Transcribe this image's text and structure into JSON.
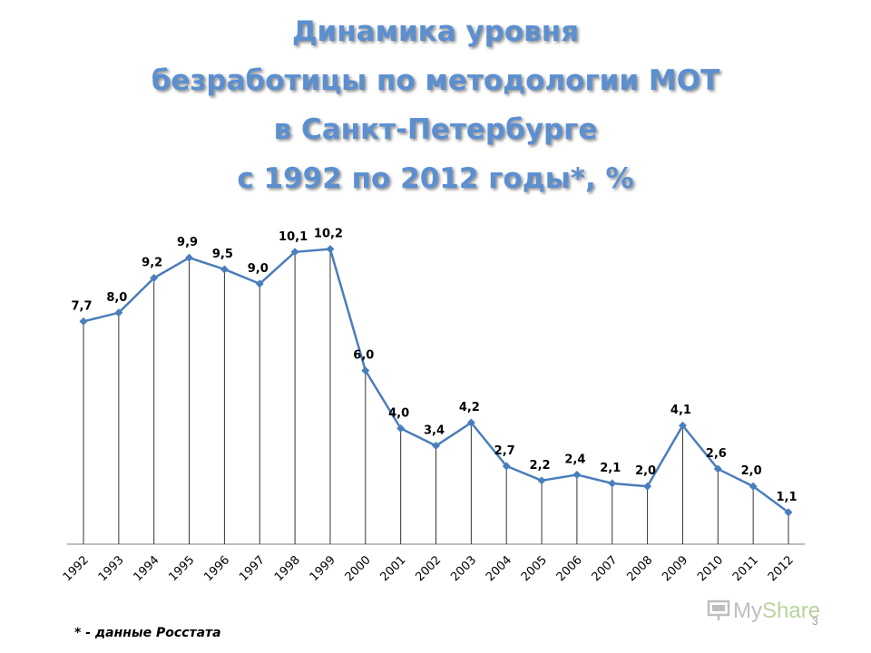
{
  "title": {
    "line1": "Динамика уровня",
    "line2": "безработицы по методологии МОТ",
    "line3": "в Санкт-Петербурге",
    "line4": "с 1992 по 2012 годы*, %"
  },
  "footnote": "* - данные Росстата",
  "page_number": "3",
  "logo": {
    "text_main": "My",
    "text_accent": "Share",
    "icon": "presentation-screen-icon"
  },
  "colors": {
    "title": "#5b8fd0",
    "line": "#4a7ebb",
    "marker": "#4a7ebb",
    "droplines": "#333333",
    "axis": "#7f7f7f"
  },
  "chart_data": {
    "type": "line",
    "categories": [
      "1992",
      "1993",
      "1994",
      "1995",
      "1996",
      "1997",
      "1998",
      "1999",
      "2000",
      "2001",
      "2002",
      "2003",
      "2004",
      "2005",
      "2006",
      "2007",
      "2008",
      "2009",
      "2010",
      "2011",
      "2012"
    ],
    "values": [
      7.7,
      8.0,
      9.2,
      9.9,
      9.5,
      9.0,
      10.1,
      10.2,
      6.0,
      4.0,
      3.4,
      4.2,
      2.7,
      2.2,
      2.4,
      2.1,
      2.0,
      4.1,
      2.6,
      2.0,
      1.1
    ],
    "data_labels": [
      "7,7",
      "8,0",
      "9,2",
      "9,9",
      "9,5",
      "9,0",
      "10,1",
      "10,2",
      "6,0",
      "4,0",
      "3,4",
      "4,2",
      "2,7",
      "2,2",
      "2,4",
      "2,1",
      "2,0",
      "4,1",
      "2,6",
      "2,0",
      "1,1"
    ],
    "title": "",
    "xlabel": "",
    "ylabel": "",
    "ylim": [
      0,
      10.5
    ],
    "drop_lines": true,
    "grid": false,
    "legend": "none",
    "marker": "diamond"
  }
}
